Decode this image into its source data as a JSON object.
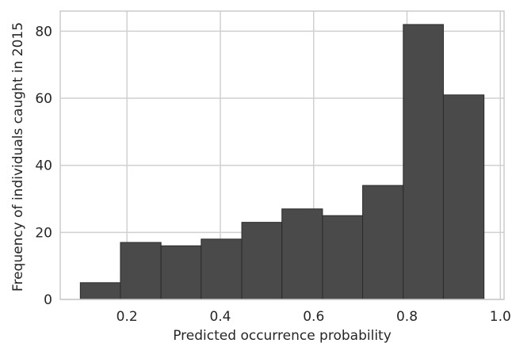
{
  "chart_data": {
    "type": "bar",
    "title": "",
    "xlabel": "Predicted occurrence probability",
    "ylabel": "Frequency of individuals caught in 2015",
    "bins": [
      {
        "x0": 0.1,
        "x1": 0.186,
        "value": 5
      },
      {
        "x0": 0.186,
        "x1": 0.273,
        "value": 17
      },
      {
        "x0": 0.273,
        "x1": 0.359,
        "value": 16
      },
      {
        "x0": 0.359,
        "x1": 0.446,
        "value": 18
      },
      {
        "x0": 0.446,
        "x1": 0.532,
        "value": 23
      },
      {
        "x0": 0.532,
        "x1": 0.619,
        "value": 27
      },
      {
        "x0": 0.619,
        "x1": 0.705,
        "value": 25
      },
      {
        "x0": 0.705,
        "x1": 0.792,
        "value": 34
      },
      {
        "x0": 0.792,
        "x1": 0.878,
        "value": 82
      },
      {
        "x0": 0.878,
        "x1": 0.965,
        "value": 61
      }
    ],
    "xlim": [
      0.057,
      1.008
    ],
    "ylim": [
      0,
      86
    ],
    "xticks": [
      "0.2",
      "0.4",
      "0.6",
      "0.8",
      "1.0"
    ],
    "xtick_values": [
      0.2,
      0.4,
      0.6,
      0.8,
      1.0
    ],
    "yticks": [
      "0",
      "20",
      "40",
      "60",
      "80"
    ],
    "ytick_values": [
      0,
      20,
      40,
      60,
      80
    ],
    "grid": true,
    "bar_color": "#4a4a4a",
    "bar_edge_color": "#2b2b2b",
    "grid_color": "#d0d0d0",
    "frame_color": "#cccccc"
  }
}
